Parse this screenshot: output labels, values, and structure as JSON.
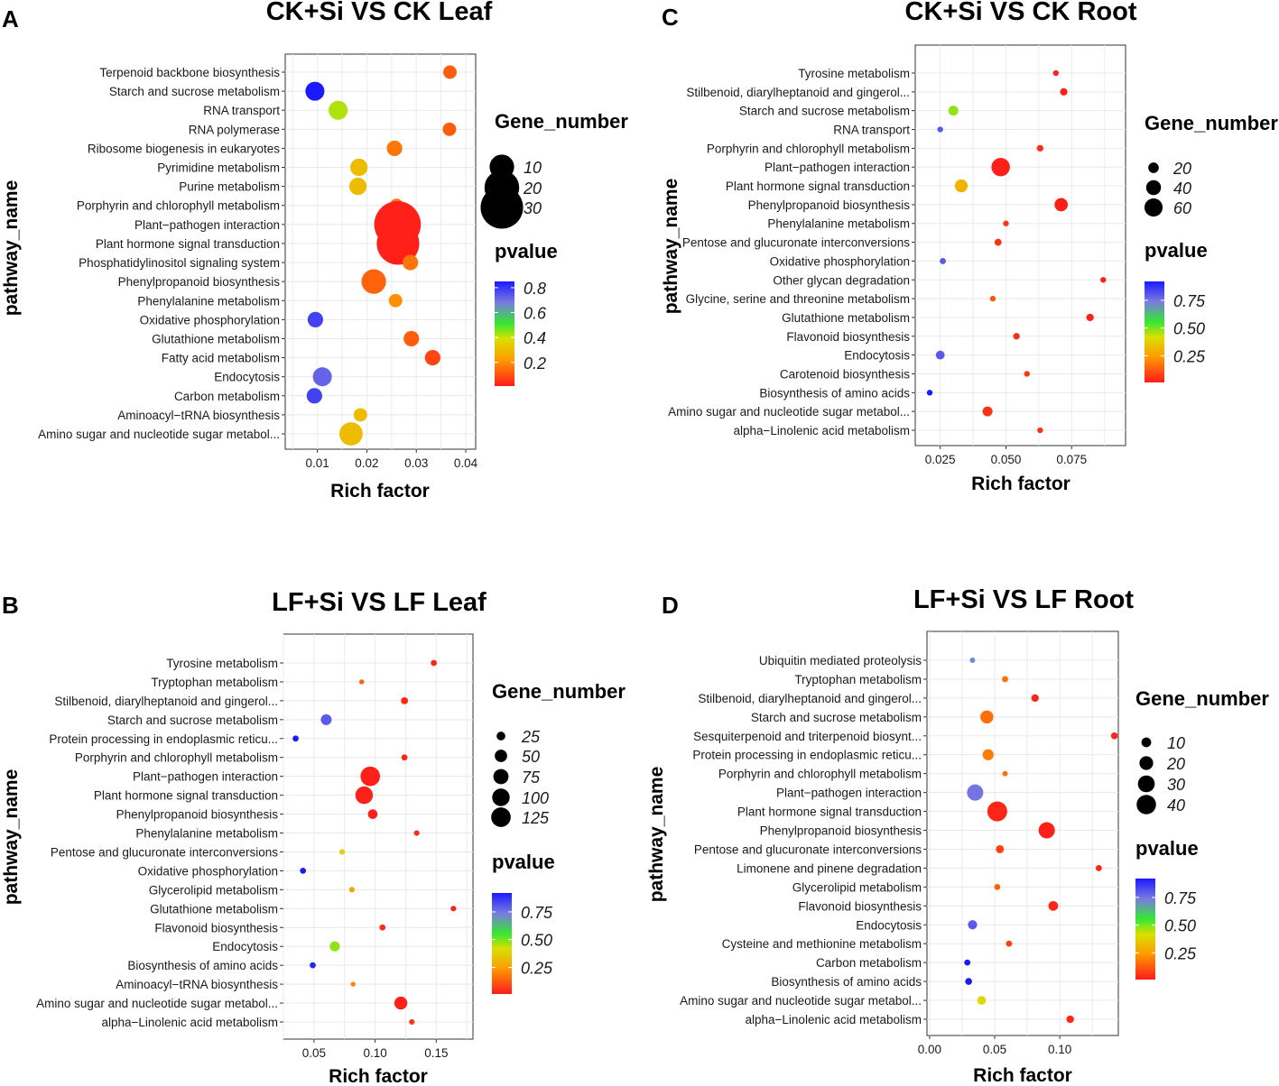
{
  "colors": {
    "low_p": "#ff1f1f",
    "mid_p": "#2ee82e",
    "high_p": "#2222ff",
    "yellow_p": "#cccc00",
    "orange_p": "#ff8a1a",
    "grid": "#e6e6e6",
    "panel_border": "#333333"
  },
  "chart_data": [
    {
      "id": "A",
      "panel_label": "A",
      "type": "scatter",
      "title": "CK+Si VS CK Leaf",
      "xlabel": "Rich factor",
      "ylabel": "pathway_name",
      "xlim": [
        0.0035,
        0.042
      ],
      "xticks": [
        0.01,
        0.02,
        0.03,
        0.04
      ],
      "xtick_labels": [
        "0.01",
        "0.02",
        "0.03",
        "0.04"
      ],
      "categories": [
        "Terpenoid backbone biosynthesis",
        "Starch and sucrose metabolism",
        "RNA transport",
        "RNA polymerase",
        "Ribosome biogenesis in eukaryotes",
        "Pyrimidine metabolism",
        "Purine metabolism",
        "Porphyrin and chlorophyll metabolism",
        "Plant−pathogen interaction",
        "Plant hormone signal transduction",
        "Phosphatidylinositol signaling system",
        "Phenylpropanoid biosynthesis",
        "Phenylalanine metabolism",
        "Oxidative phosphorylation",
        "Glutathione metabolism",
        "Fatty acid metabolism",
        "Endocytosis",
        "Carbon metabolism",
        "Aminoacyl−tRNA biosynthesis",
        "Amino sugar and nucleotide sugar metabol..."
      ],
      "rich_factor": [
        0.0368,
        0.0095,
        0.0142,
        0.0367,
        0.0256,
        0.0184,
        0.0182,
        0.026,
        0.0262,
        0.0263,
        0.0288,
        0.0214,
        0.0258,
        0.0096,
        0.029,
        0.0333,
        0.011,
        0.0094,
        0.0187,
        0.0168
      ],
      "gene_number": [
        3,
        6,
        6,
        3,
        4,
        5,
        5,
        3,
        36,
        30,
        4,
        10,
        3,
        4,
        4,
        4,
        6,
        4,
        3,
        9
      ],
      "pvalue": [
        0.12,
        0.95,
        0.42,
        0.12,
        0.16,
        0.3,
        0.3,
        0.16,
        0.02,
        0.02,
        0.16,
        0.13,
        0.2,
        0.78,
        0.12,
        0.08,
        0.72,
        0.78,
        0.3,
        0.3
      ],
      "size_legend": {
        "title": "Gene_number",
        "values": [
          10,
          20,
          30
        ]
      },
      "color_legend": {
        "title": "pvalue",
        "ticks": [
          0.8,
          0.6,
          0.4,
          0.2
        ],
        "tick_labels": [
          "0.8",
          "0.6",
          "0.4",
          "0.2"
        ],
        "range": [
          0.01,
          0.85
        ]
      }
    },
    {
      "id": "B",
      "panel_label": "B",
      "type": "scatter",
      "title": "LF+Si VS LF Leaf",
      "xlabel": "Rich factor",
      "ylabel": "pathway_name",
      "xlim": [
        0.025,
        0.18
      ],
      "xticks": [
        0.05,
        0.1,
        0.15
      ],
      "xtick_labels": [
        "0.05",
        "0.10",
        "0.15"
      ],
      "categories": [
        "Tyrosine metabolism",
        "Tryptophan metabolism",
        "Stilbenoid, diarylheptanoid and gingerol...",
        "Starch and sucrose metabolism",
        "Protein processing in endoplasmic reticu...",
        "Porphyrin and chlorophyll metabolism",
        "Plant−pathogen interaction",
        "Plant hormone signal transduction",
        "Phenylpropanoid biosynthesis",
        "Phenylalanine metabolism",
        "Pentose and glucuronate interconversions",
        "Oxidative phosphorylation",
        "Glycerolipid metabolism",
        "Glutathione metabolism",
        "Flavonoid biosynthesis",
        "Endocytosis",
        "Biosynthesis of amino acids",
        "Aminoacyl−tRNA biosynthesis",
        "Amino sugar and nucleotide sugar metabol...",
        "alpha−Linolenic acid metabolism"
      ],
      "rich_factor": [
        0.148,
        0.089,
        0.124,
        0.06,
        0.035,
        0.124,
        0.096,
        0.091,
        0.098,
        0.134,
        0.073,
        0.041,
        0.081,
        0.164,
        0.106,
        0.067,
        0.049,
        0.082,
        0.121,
        0.13
      ],
      "gene_number": [
        12,
        8,
        16,
        38,
        12,
        12,
        125,
        100,
        30,
        10,
        10,
        12,
        10,
        10,
        12,
        33,
        12,
        8,
        55,
        10
      ],
      "pvalue": [
        0.03,
        0.14,
        0.03,
        0.8,
        0.92,
        0.03,
        0.02,
        0.02,
        0.02,
        0.04,
        0.38,
        0.92,
        0.26,
        0.02,
        0.04,
        0.48,
        0.9,
        0.2,
        0.02,
        0.06
      ],
      "size_legend": {
        "title": "Gene_number",
        "values": [
          25,
          50,
          75,
          100,
          125
        ]
      },
      "color_legend": {
        "title": "pvalue",
        "ticks": [
          0.75,
          0.5,
          0.25
        ],
        "tick_labels": [
          "0.75",
          "0.50",
          "0.25"
        ],
        "range": [
          0.01,
          0.92
        ]
      }
    },
    {
      "id": "C",
      "panel_label": "C",
      "type": "scatter",
      "title": "CK+Si VS CK Root",
      "xlabel": "Rich factor",
      "ylabel": "pathway_name",
      "xlim": [
        0.0155,
        0.0955
      ],
      "xticks": [
        0.025,
        0.05,
        0.075
      ],
      "xtick_labels": [
        "0.025",
        "0.050",
        "0.075"
      ],
      "categories": [
        "Tyrosine metabolism",
        "Stilbenoid, diarylheptanoid and gingerol...",
        "Starch and sucrose metabolism",
        "RNA transport",
        "Porphyrin and chlorophyll metabolism",
        "Plant−pathogen interaction",
        "Plant hormone signal transduction",
        "Phenylpropanoid biosynthesis",
        "Phenylalanine metabolism",
        "Pentose and glucuronate interconversions",
        "Oxidative phosphorylation",
        "Other glycan degradation",
        "Glycine, serine and threonine metabolism",
        "Glutathione metabolism",
        "Flavonoid biosynthesis",
        "Endocytosis",
        "Carotenoid biosynthesis",
        "Biosynthesis of amino acids",
        "Amino sugar and nucleotide sugar metabol...",
        "alpha−Linolenic acid metabolism"
      ],
      "rich_factor": [
        0.069,
        0.072,
        0.03,
        0.025,
        0.063,
        0.048,
        0.033,
        0.071,
        0.05,
        0.047,
        0.026,
        0.087,
        0.045,
        0.082,
        0.054,
        0.025,
        0.058,
        0.021,
        0.043,
        0.063
      ],
      "gene_number": [
        6,
        10,
        18,
        6,
        8,
        62,
        30,
        32,
        6,
        9,
        7,
        6,
        6,
        10,
        8,
        14,
        6,
        6,
        18,
        6
      ],
      "pvalue": [
        0.02,
        0.02,
        0.48,
        0.8,
        0.05,
        0.02,
        0.3,
        0.02,
        0.06,
        0.05,
        0.8,
        0.02,
        0.12,
        0.02,
        0.04,
        0.8,
        0.06,
        0.95,
        0.05,
        0.05
      ],
      "size_legend": {
        "title": "Gene_number",
        "values": [
          20,
          40,
          60
        ]
      },
      "color_legend": {
        "title": "pvalue",
        "ticks": [
          0.75,
          0.5,
          0.25
        ],
        "tick_labels": [
          "0.75",
          "0.50",
          "0.25"
        ],
        "range": [
          0.01,
          0.92
        ]
      }
    },
    {
      "id": "D",
      "panel_label": "D",
      "type": "scatter",
      "title": "LF+Si VS LF Root",
      "xlabel": "Rich factor",
      "ylabel": "pathway_name",
      "xlim": [
        -0.002,
        0.145
      ],
      "xticks": [
        0.0,
        0.05,
        0.1
      ],
      "xtick_labels": [
        "0.00",
        "0.05",
        "0.10"
      ],
      "categories": [
        "Ubiquitin mediated proteolysis",
        "Tryptophan metabolism",
        "Stilbenoid, diarylheptanoid and gingerol...",
        "Starch and sucrose metabolism",
        "Sesquiterpenoid and triterpenoid biosynt...",
        "Protein processing in endoplasmic reticu...",
        "Porphyrin and chlorophyll metabolism",
        "Plant−pathogen interaction",
        "Plant hormone signal transduction",
        "Phenylpropanoid biosynthesis",
        "Pentose and glucuronate interconversions",
        "Limonene and pinene degradation",
        "Glycerolipid metabolism",
        "Flavonoid biosynthesis",
        "Endocytosis",
        "Cysteine and methionine metabolism",
        "Carbon metabolism",
        "Biosynthesis of amino acids",
        "Amino sugar and nucleotide sugar metabol...",
        "alpha−Linolenic acid metabolism"
      ],
      "rich_factor": [
        0.033,
        0.058,
        0.081,
        0.044,
        0.142,
        0.045,
        0.058,
        0.035,
        0.052,
        0.09,
        0.054,
        0.13,
        0.052,
        0.095,
        0.033,
        0.061,
        0.029,
        0.03,
        0.04,
        0.108
      ],
      "gene_number": [
        3,
        4,
        6,
        18,
        5,
        13,
        3,
        28,
        42,
        28,
        7,
        4,
        4,
        10,
        9,
        4,
        4,
        5,
        8,
        6
      ],
      "pvalue": [
        0.72,
        0.16,
        0.03,
        0.16,
        0.03,
        0.18,
        0.16,
        0.75,
        0.03,
        0.02,
        0.08,
        0.03,
        0.14,
        0.03,
        0.8,
        0.08,
        0.92,
        0.92,
        0.4,
        0.03
      ],
      "size_legend": {
        "title": "Gene_number",
        "values": [
          10,
          20,
          30,
          40
        ]
      },
      "color_legend": {
        "title": "pvalue",
        "ticks": [
          0.75,
          0.5,
          0.25
        ],
        "tick_labels": [
          "0.75",
          "0.50",
          "0.25"
        ],
        "range": [
          0.01,
          0.92
        ]
      }
    }
  ]
}
